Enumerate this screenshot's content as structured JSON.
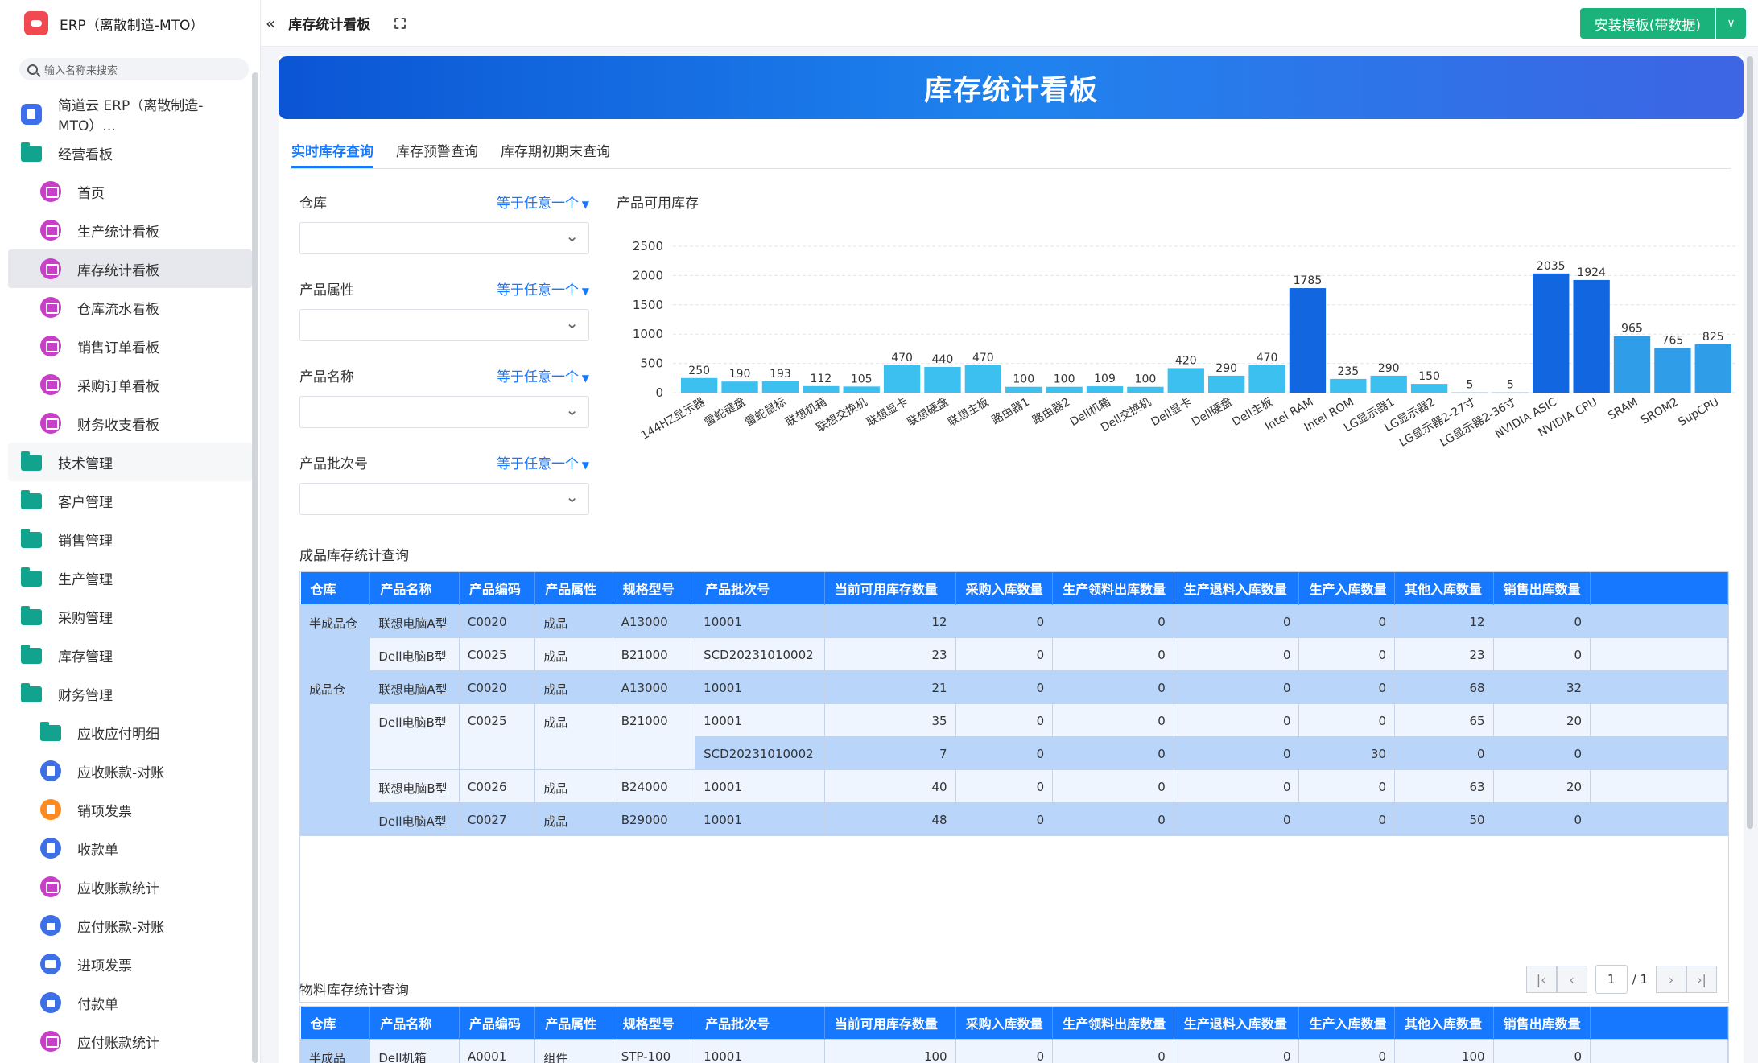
{
  "app": {
    "title": "ERP（离散制造-MTO）",
    "search_placeholder": "输入名称来搜索"
  },
  "nav": [
    {
      "label": "简道云 ERP（离散制造-MTO）...",
      "icon": "doc",
      "level": 1
    },
    {
      "label": "经营看板",
      "icon": "folder",
      "level": 1
    },
    {
      "label": "首页",
      "icon": "pink",
      "level": 2
    },
    {
      "label": "生产统计看板",
      "icon": "pink",
      "level": 2
    },
    {
      "label": "库存统计看板",
      "icon": "pink",
      "level": 2,
      "active": true
    },
    {
      "label": "仓库流水看板",
      "icon": "pink",
      "level": 2
    },
    {
      "label": "销售订单看板",
      "icon": "pink",
      "level": 2
    },
    {
      "label": "采购订单看板",
      "icon": "pink",
      "level": 2
    },
    {
      "label": "财务收支看板",
      "icon": "pink",
      "level": 2
    },
    {
      "label": "技术管理",
      "icon": "folder",
      "level": 1,
      "group": true
    },
    {
      "label": "客户管理",
      "icon": "folder",
      "level": 1
    },
    {
      "label": "销售管理",
      "icon": "folder",
      "level": 1
    },
    {
      "label": "生产管理",
      "icon": "folder",
      "level": 1
    },
    {
      "label": "采购管理",
      "icon": "folder",
      "level": 1
    },
    {
      "label": "库存管理",
      "icon": "folder",
      "level": 1
    },
    {
      "label": "财务管理",
      "icon": "folder",
      "level": 1
    },
    {
      "label": "应收应付明细",
      "icon": "folder",
      "level": 2
    },
    {
      "label": "应收账款-对账",
      "icon": "blue",
      "level": 2
    },
    {
      "label": "销项发票",
      "icon": "orange",
      "level": 2
    },
    {
      "label": "收款单",
      "icon": "blue",
      "level": 2
    },
    {
      "label": "应收账款统计",
      "icon": "pink",
      "level": 2
    },
    {
      "label": "应付账款-对账",
      "icon": "house",
      "level": 2
    },
    {
      "label": "进项发票",
      "icon": "card",
      "level": 2
    },
    {
      "label": "付款单",
      "icon": "house",
      "level": 2
    },
    {
      "label": "应付账款统计",
      "icon": "pink",
      "level": 2
    }
  ],
  "topbar": {
    "page_title": "库存统计看板",
    "install_label": "安装模板(带数据)"
  },
  "banner": {
    "title": "库存统计看板"
  },
  "tabs": [
    "实时库存查询",
    "库存预警查询",
    "库存期初期末查询"
  ],
  "filters": [
    {
      "label": "仓库",
      "op": "等于任意一个"
    },
    {
      "label": "产品属性",
      "op": "等于任意一个"
    },
    {
      "label": "产品名称",
      "op": "等于任意一个"
    },
    {
      "label": "产品批次号",
      "op": "等于任意一个"
    }
  ],
  "chart_data": {
    "type": "bar",
    "title": "产品可用库存",
    "ylim": [
      0,
      2500
    ],
    "yticks": [
      0,
      500,
      1000,
      1500,
      2000,
      2500
    ],
    "categories": [
      "144HZ显示器",
      "雷蛇键盘",
      "雷蛇鼠标",
      "联想机箱",
      "联想交换机",
      "联想显卡",
      "联想硬盘",
      "联想主板",
      "路由器1",
      "路由器2",
      "Dell机箱",
      "Dell交换机",
      "Dell显卡",
      "Dell硬盘",
      "Dell主板",
      "Intel RAM",
      "Intel ROM",
      "LG显示器1",
      "LG显示器2",
      "LG显示器2-27寸",
      "LG显示器2-36寸",
      "NVIDIA ASIC",
      "NVIDIA CPU",
      "SRAM",
      "SROM2",
      "SupCPU"
    ],
    "values": [
      250,
      190,
      193,
      112,
      105,
      470,
      440,
      470,
      100,
      100,
      109,
      100,
      420,
      290,
      470,
      1785,
      235,
      290,
      150,
      5,
      5,
      2035,
      1924,
      965,
      765,
      825
    ],
    "colors": {
      "low": "#3cc0f0",
      "mid": "#2f9de8",
      "high": "#1266e0"
    }
  },
  "finished_table": {
    "title": "成品库存统计查询",
    "headers": [
      "仓库",
      "产品名称",
      "产品编码",
      "产品属性",
      "规格型号",
      "产品批次号",
      "当前可用库存数量",
      "采购入库数量",
      "生产领料出库数量",
      "生产退料入库数量",
      "生产入库数量",
      "其他入库数量",
      "销售出库数量"
    ],
    "rows": [
      {
        "wh": "半成品仓",
        "span": 2,
        "name": "联想电脑A型",
        "code": "C0020",
        "attr": "成品",
        "spec": "A13000",
        "batch": "10001",
        "v": [
          "12",
          "0",
          "0",
          "0",
          "0",
          "12",
          "0"
        ],
        "shade": "a"
      },
      {
        "name": "Dell电脑B型",
        "code": "C0025",
        "attr": "成品",
        "spec": "B21000",
        "batch": "SCD20231010002",
        "v": [
          "23",
          "0",
          "0",
          "0",
          "0",
          "23",
          "0"
        ],
        "shade": "b"
      },
      {
        "wh": "成品仓",
        "span": 5,
        "name": "联想电脑A型",
        "code": "C0020",
        "attr": "成品",
        "spec": "A13000",
        "batch": "10001",
        "v": [
          "21",
          "0",
          "0",
          "0",
          "0",
          "68",
          "32"
        ],
        "shade": "a"
      },
      {
        "name": "Dell电脑B型",
        "code": "C0025",
        "attr": "成品",
        "spec": "B21000",
        "batch": "10001",
        "v": [
          "35",
          "0",
          "0",
          "0",
          "0",
          "65",
          "20"
        ],
        "shade": "b",
        "pspan": 2
      },
      {
        "batch": "SCD20231010002",
        "v": [
          "7",
          "0",
          "0",
          "0",
          "30",
          "0",
          "0"
        ],
        "shade": "a",
        "cont": true
      },
      {
        "name": "联想电脑B型",
        "code": "C0026",
        "attr": "成品",
        "spec": "B24000",
        "batch": "10001",
        "v": [
          "40",
          "0",
          "0",
          "0",
          "0",
          "63",
          "20"
        ],
        "shade": "b"
      },
      {
        "name": "Dell电脑A型",
        "code": "C0027",
        "attr": "成品",
        "spec": "B29000",
        "batch": "10001",
        "v": [
          "48",
          "0",
          "0",
          "0",
          "0",
          "50",
          "0"
        ],
        "shade": "a"
      }
    ],
    "pager": {
      "page": "1",
      "total": "/ 1"
    }
  },
  "material_table": {
    "title": "物料库存统计查询",
    "headers": [
      "仓库",
      "产品名称",
      "产品编码",
      "产品属性",
      "规格型号",
      "产品批次号",
      "当前可用库存数量",
      "采购入库数量",
      "生产领料出库数量",
      "生产退料入库数量",
      "生产入库数量",
      "其他入库数量",
      "销售出库数量"
    ],
    "rows": [
      {
        "wh": "半成品",
        "name": "Dell机箱",
        "code": "A0001",
        "attr": "组件",
        "spec": "STP-100",
        "batch": "10001",
        "v": [
          "100",
          "0",
          "0",
          "0",
          "0",
          "100",
          "0"
        ]
      }
    ]
  }
}
